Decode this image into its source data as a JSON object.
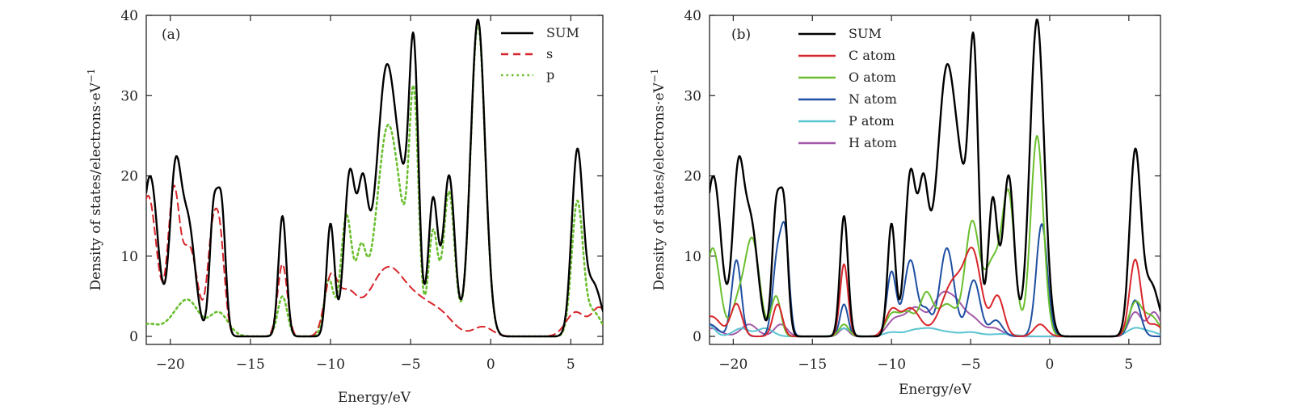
{
  "chart_data": [
    {
      "type": "line",
      "panel_label": "(a)",
      "xlabel": "Energy/eV",
      "ylabel": "Density of states/electrons·eV",
      "ylabel_sup": "−1",
      "xlim": [
        -21.5,
        7
      ],
      "ylim": [
        -1,
        40
      ],
      "x_ticks": [
        -20,
        -15,
        -10,
        -5,
        0,
        5
      ],
      "x_tick_labels": [
        "−20",
        "−15",
        "−10",
        "−5",
        "0",
        "5"
      ],
      "y_ticks": [
        0,
        10,
        20,
        30,
        40
      ],
      "y_tick_labels": [
        "0",
        "10",
        "20",
        "30",
        "40"
      ],
      "legend_position": "top-right",
      "series": [
        {
          "name": "SUM",
          "color": "#000000",
          "dash": "solid",
          "peaks": [
            [
              -21.6,
              6,
              0.6
            ],
            [
              -21.2,
              15,
              0.45
            ],
            [
              -19.7,
              19,
              0.35
            ],
            [
              -18.9,
              14,
              0.45
            ],
            [
              -17.3,
              15,
              0.25
            ],
            [
              -16.8,
              15.5,
              0.25
            ],
            [
              -13,
              15,
              0.25
            ],
            [
              -10,
              14,
              0.25
            ],
            [
              -8.8,
              20,
              0.35
            ],
            [
              -8,
              14,
              0.3
            ],
            [
              -7.3,
              9,
              0.6
            ],
            [
              -6.5,
              27,
              0.5
            ],
            [
              -5.6,
              16,
              0.5
            ],
            [
              -4.8,
              33,
              0.3
            ],
            [
              -3.6,
              17,
              0.3
            ],
            [
              -2.6,
              20,
              0.35
            ],
            [
              -0.8,
              39.5,
              0.45
            ],
            [
              5.4,
              22.5,
              0.35
            ],
            [
              6.4,
              6.5,
              0.5
            ]
          ]
        },
        {
          "name": "s",
          "color": "#d7262b",
          "dash": "dashed",
          "peaks": [
            [
              -21.6,
              9,
              0.5
            ],
            [
              -21.2,
              10,
              0.5
            ],
            [
              -19.8,
              17,
              0.35
            ],
            [
              -18.8,
              11,
              0.5
            ],
            [
              -17.4,
              11,
              0.3
            ],
            [
              -16.9,
              11.5,
              0.3
            ],
            [
              -13,
              9,
              0.3
            ],
            [
              -10,
              6.5,
              0.4
            ],
            [
              -9,
              4.8,
              0.6
            ],
            [
              -7.5,
              3,
              0.9
            ],
            [
              -6.3,
              6.5,
              0.9
            ],
            [
              -4.6,
              4,
              1.0
            ],
            [
              -3,
              2,
              0.8
            ],
            [
              -0.5,
              1.2,
              0.6
            ],
            [
              5.3,
              3,
              0.6
            ],
            [
              6.8,
              3.5,
              0.5
            ]
          ]
        },
        {
          "name": "p",
          "color": "#6abf2e",
          "dash": "dotted",
          "peaks": [
            [
              -21.4,
              1.5,
              0.7
            ],
            [
              -19.5,
              2.5,
              0.7
            ],
            [
              -18.7,
              3,
              0.6
            ],
            [
              -17,
              3,
              0.6
            ],
            [
              -13,
              5,
              0.3
            ],
            [
              -10.1,
              7,
              0.3
            ],
            [
              -9,
              15,
              0.35
            ],
            [
              -8.1,
              9,
              0.3
            ],
            [
              -7.3,
              7,
              0.5
            ],
            [
              -6.5,
              20.5,
              0.5
            ],
            [
              -5.7,
              13,
              0.5
            ],
            [
              -4.8,
              28.5,
              0.3
            ],
            [
              -3.6,
              13,
              0.3
            ],
            [
              -2.6,
              18,
              0.35
            ],
            [
              -0.8,
              39,
              0.45
            ],
            [
              5.4,
              16.5,
              0.35
            ],
            [
              6.4,
              3,
              0.5
            ]
          ]
        }
      ]
    },
    {
      "type": "line",
      "panel_label": "(b)",
      "xlabel": "Energy/eV",
      "ylabel": "Density of states/electrons·eV",
      "ylabel_sup": "−1",
      "xlim": [
        -21.5,
        7
      ],
      "ylim": [
        -1,
        40
      ],
      "x_ticks": [
        -20,
        -15,
        -10,
        -5,
        0,
        5
      ],
      "x_tick_labels": [
        "−20",
        "−15",
        "−10",
        "−5",
        "0",
        "5"
      ],
      "y_ticks": [
        0,
        10,
        20,
        30,
        40
      ],
      "y_tick_labels": [
        "0",
        "10",
        "20",
        "30",
        "40"
      ],
      "legend_position": "top-left",
      "series": [
        {
          "name": "SUM",
          "color": "#000000",
          "dash": "solid",
          "peaks": [
            [
              -21.6,
              6,
              0.6
            ],
            [
              -21.2,
              15,
              0.45
            ],
            [
              -19.7,
              19,
              0.35
            ],
            [
              -18.9,
              14,
              0.45
            ],
            [
              -17.3,
              15,
              0.25
            ],
            [
              -16.8,
              15.5,
              0.25
            ],
            [
              -13,
              15,
              0.25
            ],
            [
              -10,
              14,
              0.25
            ],
            [
              -8.8,
              20,
              0.35
            ],
            [
              -8,
              14,
              0.3
            ],
            [
              -7.3,
              9,
              0.6
            ],
            [
              -6.5,
              27,
              0.5
            ],
            [
              -5.6,
              16,
              0.5
            ],
            [
              -4.8,
              33,
              0.3
            ],
            [
              -3.6,
              17,
              0.3
            ],
            [
              -2.6,
              20,
              0.35
            ],
            [
              -0.8,
              39.5,
              0.45
            ],
            [
              5.4,
              22.5,
              0.35
            ],
            [
              6.4,
              6.5,
              0.5
            ]
          ]
        },
        {
          "name": "C atom",
          "color": "#d7262b",
          "dash": "solid",
          "peaks": [
            [
              -21.4,
              2.5,
              0.6
            ],
            [
              -19.8,
              4,
              0.35
            ],
            [
              -17.2,
              4,
              0.3
            ],
            [
              -13,
              9,
              0.25
            ],
            [
              -10,
              3,
              0.4
            ],
            [
              -8.8,
              3.5,
              0.6
            ],
            [
              -6,
              7,
              0.8
            ],
            [
              -4.8,
              8.5,
              0.5
            ],
            [
              -3.3,
              5,
              0.4
            ],
            [
              -0.6,
              1.5,
              0.4
            ],
            [
              5.4,
              9.5,
              0.35
            ],
            [
              6.6,
              1.5,
              0.5
            ]
          ]
        },
        {
          "name": "O atom",
          "color": "#6abf2e",
          "dash": "solid",
          "peaks": [
            [
              -21.3,
              11,
              0.45
            ],
            [
              -19.7,
              4,
              0.4
            ],
            [
              -18.8,
              12,
              0.45
            ],
            [
              -17.3,
              5,
              0.3
            ],
            [
              -13,
              1.5,
              0.3
            ],
            [
              -10,
              2.5,
              0.4
            ],
            [
              -9,
              3,
              0.5
            ],
            [
              -7.8,
              5,
              0.4
            ],
            [
              -6.5,
              4,
              0.6
            ],
            [
              -4.9,
              14,
              0.45
            ],
            [
              -3.6,
              9,
              0.5
            ],
            [
              -2.6,
              17,
              0.4
            ],
            [
              -0.8,
              25,
              0.4
            ],
            [
              5.4,
              4,
              0.4
            ],
            [
              6.4,
              2.5,
              0.5
            ]
          ]
        },
        {
          "name": "N atom",
          "color": "#1e4fa1",
          "dash": "solid",
          "peaks": [
            [
              -21.5,
              1.5,
              0.5
            ],
            [
              -19.8,
              9.5,
              0.3
            ],
            [
              -17.2,
              10,
              0.3
            ],
            [
              -16.7,
              11,
              0.25
            ],
            [
              -13,
              4,
              0.25
            ],
            [
              -10,
              8,
              0.3
            ],
            [
              -8.8,
              9.5,
              0.4
            ],
            [
              -7.8,
              3,
              0.3
            ],
            [
              -6.5,
              11,
              0.45
            ],
            [
              -4.8,
              7,
              0.4
            ],
            [
              -3.4,
              2,
              0.4
            ],
            [
              -0.5,
              14,
              0.35
            ],
            [
              5.4,
              4.5,
              0.35
            ]
          ]
        },
        {
          "name": "P atom",
          "color": "#5bc4d2",
          "dash": "solid",
          "peaks": [
            [
              -21.6,
              1.5,
              0.4
            ],
            [
              -19.5,
              1,
              0.5
            ],
            [
              -18,
              1,
              0.5
            ],
            [
              -13,
              1,
              0.4
            ],
            [
              -10,
              0.5,
              0.5
            ],
            [
              -8.5,
              0.8,
              0.6
            ],
            [
              -7.5,
              0.7,
              0.5
            ],
            [
              -6.5,
              0.5,
              0.6
            ],
            [
              -5,
              0.5,
              0.6
            ],
            [
              -3,
              0.3,
              0.8
            ],
            [
              5.4,
              1,
              0.5
            ],
            [
              6.4,
              0.5,
              0.5
            ]
          ]
        },
        {
          "name": "H atom",
          "color": "#a459a8",
          "dash": "solid",
          "peaks": [
            [
              -21.4,
              1,
              0.6
            ],
            [
              -19,
              1.5,
              0.5
            ],
            [
              -17,
              1.5,
              0.4
            ],
            [
              -13,
              1,
              0.3
            ],
            [
              -9.8,
              2,
              0.5
            ],
            [
              -8.5,
              3.5,
              0.6
            ],
            [
              -6.8,
              5,
              0.6
            ],
            [
              -5.8,
              3,
              0.5
            ],
            [
              -4.8,
              2,
              0.5
            ],
            [
              -3.5,
              1,
              0.5
            ],
            [
              5.4,
              3,
              0.4
            ],
            [
              6.6,
              3,
              0.4
            ]
          ]
        }
      ]
    }
  ]
}
